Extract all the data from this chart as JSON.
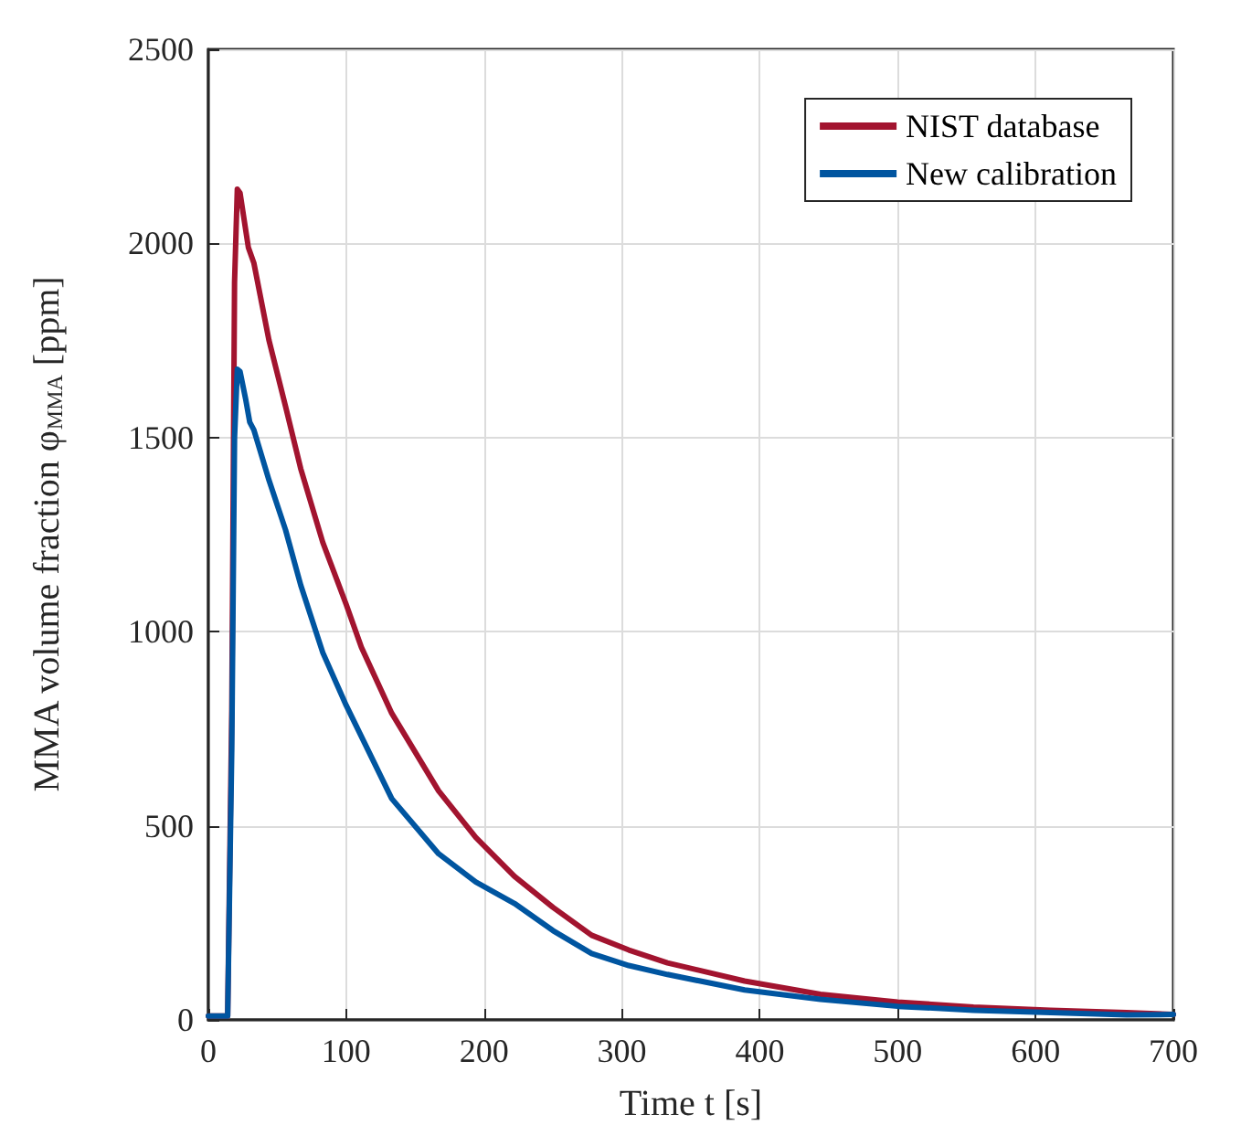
{
  "chart_data": {
    "type": "line",
    "xlabel": "Time t [s]",
    "ylabel": "MMA volume fraction φ$_{MMA}$ [ppm]",
    "xlim": [
      0,
      700
    ],
    "xticks": [
      0,
      100,
      200,
      300,
      400,
      500,
      600,
      700
    ],
    "ylim": [
      0,
      2500
    ],
    "yticks": [
      0,
      500,
      1000,
      1500,
      2000,
      2500
    ],
    "grid": true,
    "legend": "top right",
    "marker": "none",
    "line_style": "solid",
    "series": [
      {
        "name": "NIST database",
        "color": "#a2142f",
        "x": [
          0,
          14,
          17,
          19,
          21,
          23,
          26,
          29,
          33,
          44,
          56,
          67,
          83,
          100,
          111,
          133,
          167,
          194,
          222,
          250,
          278,
          305,
          333,
          389,
          444,
          500,
          555,
          611,
          666,
          700
        ],
        "values": [
          10,
          10,
          800,
          1900,
          2140,
          2130,
          2060,
          1990,
          1950,
          1750,
          1580,
          1420,
          1230,
          1070,
          960,
          790,
          590,
          470,
          370,
          290,
          218,
          180,
          147,
          100,
          66,
          46,
          33,
          25,
          19,
          14
        ]
      },
      {
        "name": "New calibration",
        "color": "#0055a0",
        "x": [
          0,
          14,
          17,
          19,
          21,
          23,
          27,
          30,
          33,
          44,
          56,
          67,
          83,
          100,
          111,
          133,
          167,
          194,
          222,
          250,
          278,
          305,
          333,
          389,
          444,
          500,
          555,
          611,
          666,
          700
        ],
        "values": [
          10,
          10,
          700,
          1500,
          1676,
          1670,
          1600,
          1540,
          1520,
          1390,
          1262,
          1120,
          946,
          810,
          730,
          570,
          428,
          355,
          300,
          230,
          171,
          140,
          117,
          77,
          53,
          35,
          25,
          19,
          13,
          14
        ]
      }
    ]
  }
}
